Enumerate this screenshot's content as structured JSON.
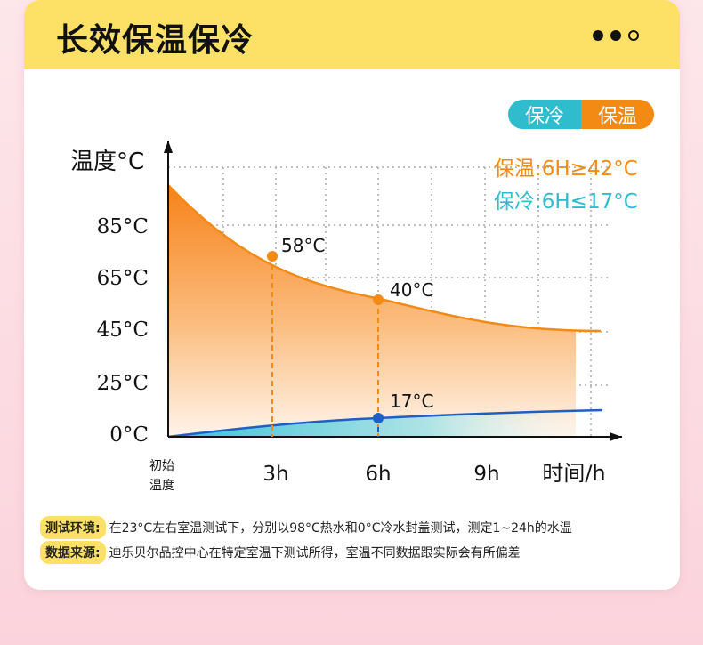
{
  "header": {
    "title": "长效保温保冷"
  },
  "toggle": {
    "cold_label": "保冷",
    "warm_label": "保温"
  },
  "legend": {
    "warm": "保温:6H≥42°C",
    "cold": "保冷:6H≤17°C"
  },
  "colors": {
    "warm": "#f28a14",
    "cold": "#2fbccc",
    "cold_line": "#1f5fc4",
    "header": "#fde066"
  },
  "chart_data": {
    "type": "area",
    "ylabel": "温度°C",
    "xlabel": "时间/h",
    "x_tick_labels": [
      "初始\n温度",
      "3h",
      "6h",
      "9h"
    ],
    "y_tick_labels": [
      "0°C",
      "25°C",
      "45°C",
      "65°C",
      "85°C"
    ],
    "annotations": [
      "58°C",
      "40°C",
      "17°C"
    ],
    "grid": true
  },
  "notes": [
    {
      "label": "测试环境:",
      "text": "在23°C左右室温测试下，分别以98°C热水和0°C冷水封盖测试，测定1~24h的水温"
    },
    {
      "label": "数据来源:",
      "text": "迪乐贝尔品控中心在特定室温下测试所得，室温不同数据跟实际会有所偏差"
    }
  ]
}
